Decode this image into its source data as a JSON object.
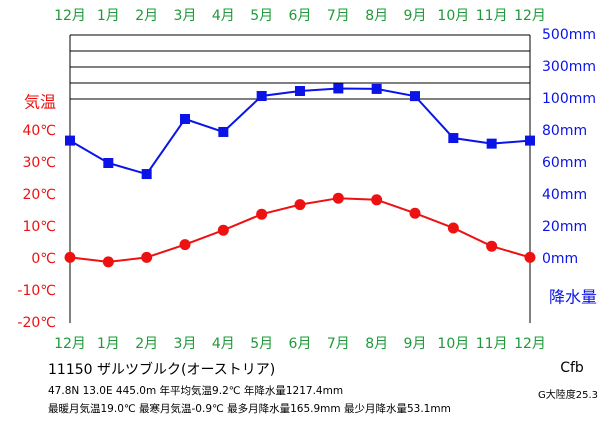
{
  "chart_data": {
    "type": "climate",
    "categories": [
      "12月",
      "1月",
      "2月",
      "3月",
      "4月",
      "5月",
      "6月",
      "7月",
      "8月",
      "9月",
      "10月",
      "11月",
      "12月"
    ],
    "series": [
      {
        "name": "気温",
        "color": "#ee1111",
        "values": [
          0.5,
          -0.9,
          0.5,
          4.5,
          9.0,
          14.0,
          17.0,
          19.0,
          18.5,
          14.3,
          9.7,
          4.0,
          0.5
        ]
      },
      {
        "name": "降水量",
        "color": "#0a14e6",
        "axis": "y2",
        "values": [
          74.0,
          60.0,
          53.1,
          87.5,
          79.4,
          118.8,
          150.0,
          165.9,
          163.0,
          118.0,
          75.6,
          72.1,
          74.0
        ]
      }
    ],
    "ylim": [
      -20,
      70
    ],
    "yticks": [
      {
        "value": 40,
        "label": "40℃"
      },
      {
        "value": 30,
        "label": "30℃"
      },
      {
        "value": 20,
        "label": "20℃"
      },
      {
        "value": 10,
        "label": "10℃"
      },
      {
        "value": 0,
        "label": "0℃"
      },
      {
        "value": -10,
        "label": "-10℃"
      },
      {
        "value": -20,
        "label": "-20℃"
      }
    ],
    "y2lim": [
      -40,
      500
    ],
    "y2_break": 100,
    "y2_break_factor": 10,
    "y2ticks": [
      {
        "value": 500,
        "label": "500mm"
      },
      {
        "value": 300,
        "label": "300mm"
      },
      {
        "value": 100,
        "label": "100mm"
      },
      {
        "value": 80,
        "label": "80mm"
      },
      {
        "value": 60,
        "label": "60mm"
      },
      {
        "value": 40,
        "label": "40mm"
      },
      {
        "value": 20,
        "label": "20mm"
      },
      {
        "value": 0,
        "label": "0mm"
      }
    ],
    "y2grid": [
      100,
      200,
      300,
      400,
      500
    ],
    "station": "11150 ザルツブルク(オーストリア)",
    "info1": "47.8N 13.0E 445.0m 年平均気温9.2℃ 年降水量1217.4mm",
    "info2": "最暖月気温19.0℃ 最寒月気温-0.9℃ 最多月降水量165.9mm 最少月降水量53.1mm",
    "climate_class": "Cfb",
    "continentality": "G大陸度25.3"
  }
}
